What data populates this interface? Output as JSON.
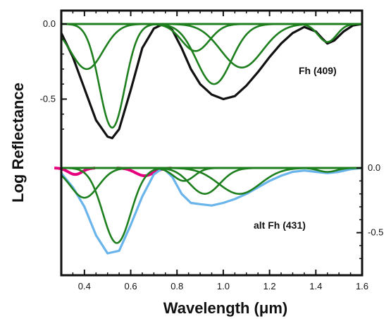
{
  "chart_data": {
    "type": "line",
    "xlabel": "Wavelength (μm)",
    "ylabel": "Log Reflectance",
    "xlim": [
      0.3,
      1.6
    ],
    "x_ticks": [
      "0.4",
      "0.6",
      "0.8",
      "1.0",
      "1.2",
      "1.4",
      "1.6"
    ],
    "grid": false,
    "panels": [
      {
        "label": "Fh (409)",
        "ylim": [
          -0.78,
          0.02
        ],
        "y_axis_side": "left",
        "y_ticks": [
          "0.0",
          "-0.5"
        ],
        "colors": {
          "spectrum": "#111111",
          "bands": "#1e7f1e",
          "baseline": "#1e7f1e"
        },
        "spectrum": {
          "x": [
            0.3,
            0.35,
            0.4,
            0.45,
            0.5,
            0.52,
            0.55,
            0.6,
            0.65,
            0.7,
            0.74,
            0.78,
            0.82,
            0.86,
            0.9,
            0.95,
            1.0,
            1.05,
            1.1,
            1.15,
            1.2,
            1.25,
            1.3,
            1.35,
            1.4,
            1.43,
            1.45,
            1.48,
            1.52,
            1.56,
            1.6
          ],
          "y": [
            -0.06,
            -0.22,
            -0.43,
            -0.64,
            -0.75,
            -0.76,
            -0.7,
            -0.44,
            -0.16,
            -0.03,
            0.0,
            -0.04,
            -0.16,
            -0.3,
            -0.4,
            -0.47,
            -0.5,
            -0.48,
            -0.41,
            -0.32,
            -0.22,
            -0.13,
            -0.06,
            -0.02,
            -0.05,
            -0.1,
            -0.13,
            -0.11,
            -0.05,
            -0.01,
            0.0
          ]
        },
        "bands": [
          {
            "center": 0.41,
            "depth": 0.3,
            "width": 0.07
          },
          {
            "center": 0.52,
            "depth": 0.69,
            "width": 0.055
          },
          {
            "center": 0.88,
            "depth": 0.18,
            "width": 0.06
          },
          {
            "center": 0.96,
            "depth": 0.4,
            "width": 0.075
          },
          {
            "center": 1.08,
            "depth": 0.29,
            "width": 0.09
          },
          {
            "center": 1.45,
            "depth": 0.12,
            "width": 0.04
          }
        ]
      },
      {
        "label": "alt Fh (431)",
        "ylim": [
          -0.72,
          0.04
        ],
        "y_axis_side": "right",
        "y_ticks": [
          "0.0",
          "-0.5"
        ],
        "colors": {
          "spectrum": "#6ab4ec",
          "bands": "#1e7f1e",
          "baseline": "#c0245c",
          "overlap": "#e5007e"
        },
        "spectrum": {
          "x": [
            0.3,
            0.35,
            0.4,
            0.45,
            0.5,
            0.55,
            0.6,
            0.65,
            0.7,
            0.74,
            0.78,
            0.82,
            0.86,
            0.9,
            0.95,
            1.0,
            1.05,
            1.1,
            1.15,
            1.2,
            1.25,
            1.3,
            1.35,
            1.4,
            1.45,
            1.5,
            1.55,
            1.6
          ],
          "y": [
            -0.04,
            -0.15,
            -0.3,
            -0.52,
            -0.66,
            -0.64,
            -0.44,
            -0.22,
            -0.05,
            0.0,
            -0.07,
            -0.2,
            -0.27,
            -0.28,
            -0.29,
            -0.27,
            -0.24,
            -0.2,
            -0.15,
            -0.1,
            -0.06,
            -0.03,
            -0.02,
            -0.03,
            -0.04,
            -0.03,
            -0.01,
            0.0
          ]
        },
        "bands": [
          {
            "center": 0.4,
            "depth": 0.23,
            "width": 0.06
          },
          {
            "center": 0.54,
            "depth": 0.58,
            "width": 0.06
          },
          {
            "center": 0.83,
            "depth": 0.1,
            "width": 0.045
          },
          {
            "center": 0.92,
            "depth": 0.2,
            "width": 0.065
          },
          {
            "center": 1.07,
            "depth": 0.2,
            "width": 0.09
          },
          {
            "center": 1.45,
            "depth": 0.03,
            "width": 0.04
          }
        ],
        "overlap_bands": [
          {
            "center": 0.36,
            "depth": 0.05,
            "width": 0.03
          },
          {
            "center": 0.66,
            "depth": 0.06,
            "width": 0.04
          }
        ]
      }
    ]
  }
}
